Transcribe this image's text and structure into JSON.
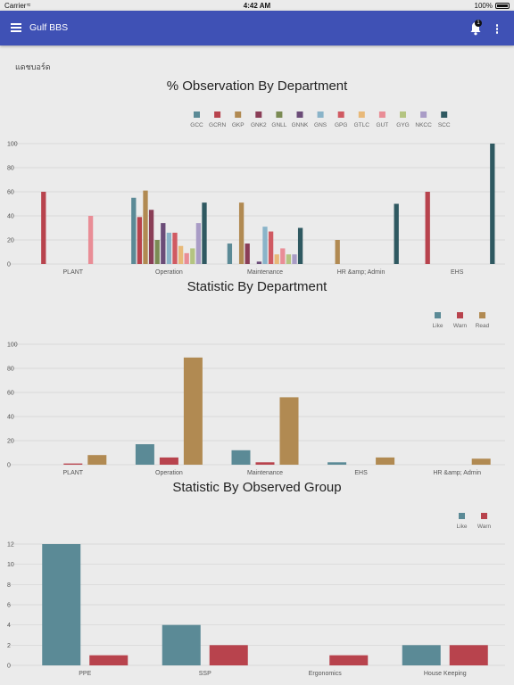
{
  "status_bar": {
    "carrier": "Carrier",
    "time": "4:42 AM",
    "battery": "100%"
  },
  "app_bar": {
    "title": "Gulf BBS",
    "notification_count": "1"
  },
  "dashboard_label": "แดชบอร์ด",
  "chart_data": [
    {
      "type": "bar",
      "title": "% Observation By Department",
      "categories": [
        "PLANT",
        "Operation",
        "Maintenance",
        "HR &amp; Admin",
        "EHS"
      ],
      "ylim": [
        0,
        100
      ],
      "yticks": [
        0,
        20,
        40,
        60,
        80,
        100
      ],
      "grid": true,
      "legend": "top-right",
      "series": [
        {
          "name": "GCC",
          "color": "#5b8a96",
          "values": [
            0,
            55,
            17,
            0,
            0
          ]
        },
        {
          "name": "GCRN",
          "color": "#b8434d",
          "values": [
            60,
            39,
            0,
            0,
            60
          ]
        },
        {
          "name": "GKP",
          "color": "#b18a52",
          "values": [
            0,
            61,
            51,
            20,
            0
          ]
        },
        {
          "name": "GNK2",
          "color": "#8a3e57",
          "values": [
            0,
            45,
            17,
            0,
            0
          ]
        },
        {
          "name": "GNLL",
          "color": "#7b8b54",
          "values": [
            0,
            20,
            0,
            0,
            0
          ]
        },
        {
          "name": "GNNK",
          "color": "#6b4c78",
          "values": [
            0,
            34,
            2,
            0,
            0
          ]
        },
        {
          "name": "GNS",
          "color": "#8ab4c9",
          "values": [
            0,
            26,
            31,
            0,
            0
          ]
        },
        {
          "name": "GPG",
          "color": "#d05a62",
          "values": [
            0,
            26,
            27,
            0,
            0
          ]
        },
        {
          "name": "GTLC",
          "color": "#e8b979",
          "values": [
            0,
            15,
            8,
            0,
            0
          ]
        },
        {
          "name": "GUT",
          "color": "#e98d96",
          "values": [
            40,
            9,
            13,
            0,
            0
          ]
        },
        {
          "name": "GYG",
          "color": "#b4c481",
          "values": [
            0,
            13,
            8,
            0,
            0
          ]
        },
        {
          "name": "NKCC",
          "color": "#a99cc6",
          "values": [
            0,
            34,
            8,
            0,
            0
          ]
        },
        {
          "name": "SCC",
          "color": "#2f5961",
          "values": [
            0,
            51,
            30,
            50,
            100
          ]
        }
      ]
    },
    {
      "type": "bar",
      "title": "Statistic By Department",
      "categories": [
        "PLANT",
        "Operation",
        "Maintenance",
        "EHS",
        "HR &amp; Admin"
      ],
      "ylim": [
        0,
        100
      ],
      "yticks": [
        0,
        20,
        40,
        60,
        80,
        100
      ],
      "grid": true,
      "legend": "top-right",
      "series": [
        {
          "name": "Like",
          "color": "#5b8a96",
          "values": [
            0,
            17,
            12,
            2,
            0
          ]
        },
        {
          "name": "Warn",
          "color": "#b8434d",
          "values": [
            1,
            6,
            2,
            0,
            0
          ]
        },
        {
          "name": "Read",
          "color": "#b18a52",
          "values": [
            8,
            89,
            56,
            6,
            5
          ]
        }
      ]
    },
    {
      "type": "bar",
      "title": "Statistic By Observed Group",
      "categories": [
        "PPE",
        "SSP",
        "Ergonomics",
        "House Keeping"
      ],
      "ylim": [
        0,
        12
      ],
      "yticks": [
        0,
        2,
        4,
        6,
        8,
        10,
        12
      ],
      "grid": true,
      "legend": "top-right",
      "series": [
        {
          "name": "Like",
          "color": "#5b8a96",
          "values": [
            12,
            4,
            0,
            2
          ]
        },
        {
          "name": "Warn",
          "color": "#b8434d",
          "values": [
            1,
            2,
            1,
            2
          ]
        }
      ]
    }
  ]
}
